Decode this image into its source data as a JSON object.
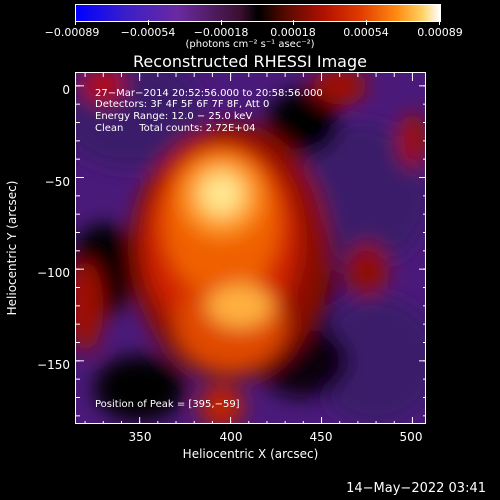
{
  "chart_data": {
    "type": "heatmap",
    "title": "Reconstructed RHESSI Image",
    "xlabel": "Heliocentric X (arcsec)",
    "ylabel": "Heliocentric Y (arcsec)",
    "xlim": [
      315,
      508
    ],
    "ylim": [
      -185,
      7
    ],
    "xticks": [
      "350",
      "400",
      "450",
      "500"
    ],
    "yticks": [
      "0",
      "−50",
      "−100",
      "−150"
    ],
    "colorbar": {
      "ticks": [
        "−0.00089",
        "−0.00054",
        "−0.00018",
        "0.00018",
        "0.00054",
        "0.00089"
      ],
      "units": "(photons cm⁻² s⁻¹ asec⁻²)",
      "range": [
        -0.00089,
        0.00089
      ]
    },
    "info": {
      "line1": "27−Mar−2014 20:52:56.000 to 20:58:56.000",
      "line2": "Detectors: 3F 4F 5F 6F 7F 8F, Att 0",
      "line3": "Energy Range: 12.0 − 25.0 keV",
      "line4": "Clean     Total counts: 2.72E+04"
    },
    "peak_label": "Position of Peak = [395,−59]",
    "peak": [
      395,
      -59
    ]
  },
  "timestamp": "14−May−2022 03:41"
}
